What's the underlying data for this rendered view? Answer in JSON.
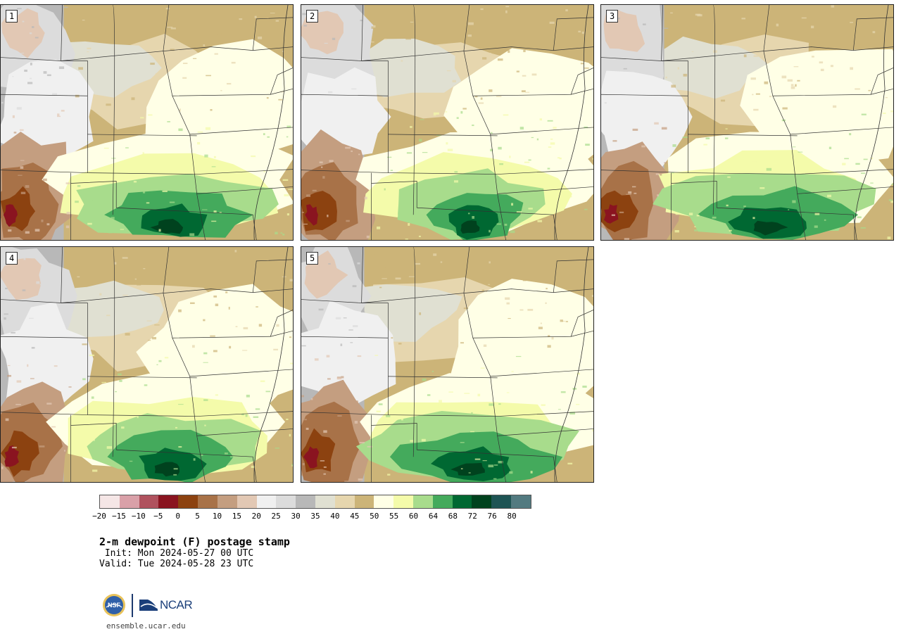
{
  "panels": [
    {
      "label": "1",
      "cool": 0.35,
      "moist": 0.85
    },
    {
      "label": "2",
      "cool": 0.45,
      "moist": 0.55
    },
    {
      "label": "3",
      "cool": 0.4,
      "moist": 0.9
    },
    {
      "label": "4",
      "cool": 0.38,
      "moist": 0.75
    },
    {
      "label": "5",
      "cool": 0.5,
      "moist": 0.95
    }
  ],
  "colorbar": {
    "colors": [
      "#f5e6e6",
      "#d9a0a8",
      "#b0525e",
      "#8a1420",
      "#8c4210",
      "#a87248",
      "#c49e80",
      "#e2c8b4",
      "#f0f0f0",
      "#dcdcdc",
      "#b8b8b8",
      "#e0e0d2",
      "#e6d6ae",
      "#ccb478",
      "#ffffe6",
      "#f4fbaa",
      "#a8dc8c",
      "#44aa5c",
      "#006832",
      "#00421e",
      "#1e5454",
      "#527a80"
    ],
    "ticks": [
      "−20",
      "−15",
      "−10",
      "−5",
      "0",
      "5",
      "10",
      "15",
      "20",
      "25",
      "30",
      "35",
      "40",
      "45",
      "50",
      "55",
      "60",
      "64",
      "68",
      "72",
      "76",
      "80"
    ]
  },
  "title": "2-m dewpoint (F) postage stamp",
  "init_line": " Init: Mon 2024-05-27 00 UTC",
  "valid_line": "Valid: Tue 2024-05-28 23 UTC",
  "logo": {
    "nsf_text": "NSF",
    "ncar_text": "NCAR"
  },
  "website": "ensemble.ucar.edu"
}
